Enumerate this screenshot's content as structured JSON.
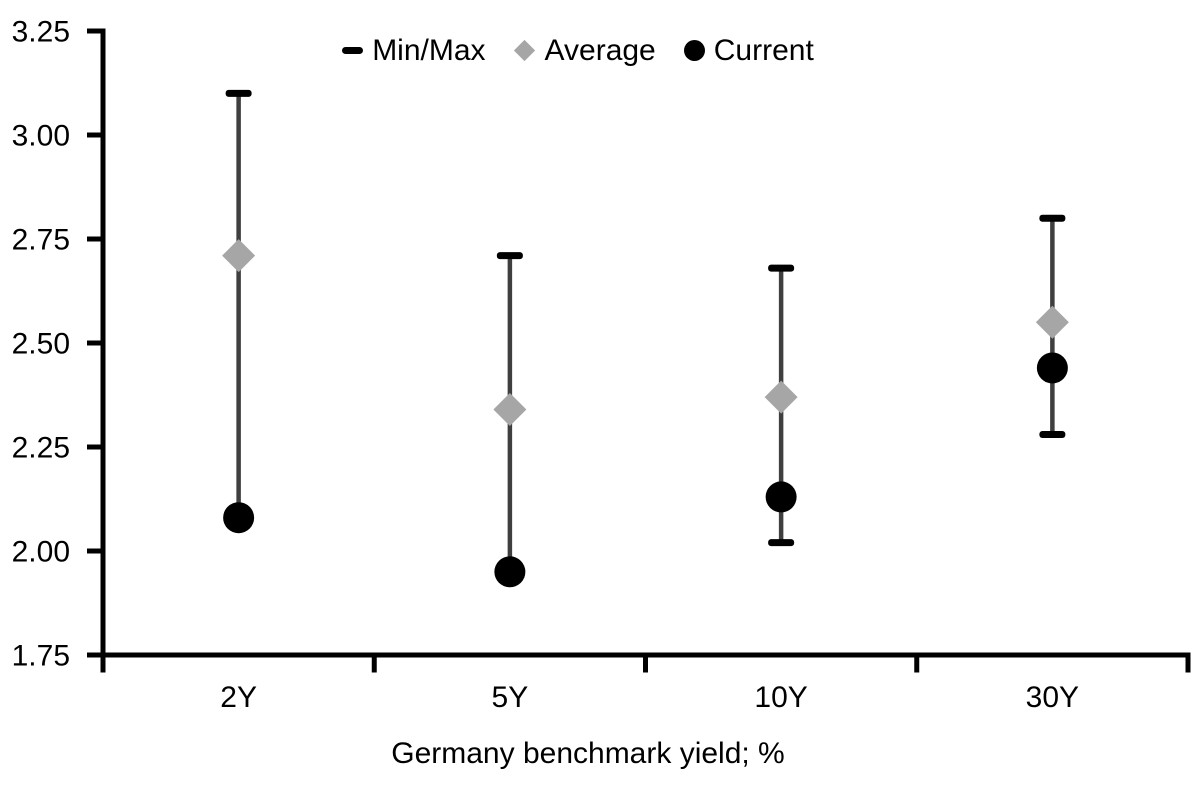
{
  "page": {
    "background": "#ffffff"
  },
  "chart_data": {
    "type": "scatter",
    "title": "",
    "xlabel": "Germany benchmark yield; %",
    "ylabel": "",
    "categories": [
      "2Y",
      "5Y",
      "10Y",
      "30Y"
    ],
    "series": [
      {
        "name": "Min/Max",
        "marker": "dash",
        "role": "range",
        "min": [
          2.08,
          1.95,
          2.02,
          2.28
        ],
        "max": [
          3.1,
          2.71,
          2.68,
          2.8
        ]
      },
      {
        "name": "Average",
        "marker": "diamond",
        "role": "point",
        "values": [
          2.71,
          2.34,
          2.37,
          2.55
        ]
      },
      {
        "name": "Current",
        "marker": "circle",
        "role": "point",
        "values": [
          2.08,
          1.95,
          2.13,
          2.44
        ]
      }
    ],
    "ylim": [
      1.75,
      3.25
    ],
    "ytick_step": 0.25,
    "ytick_labels": [
      "3.25",
      "3.00",
      "2.75",
      "2.50",
      "2.25",
      "2.00",
      "1.75"
    ],
    "grid": false,
    "legend_position": "top-center",
    "colors": {
      "axis": "#000000",
      "text": "#000000",
      "range_line": "#3f3f3f",
      "range_cap": "#000000",
      "average": "#a6a6a6",
      "current": "#000000",
      "background": "#ffffff"
    }
  }
}
